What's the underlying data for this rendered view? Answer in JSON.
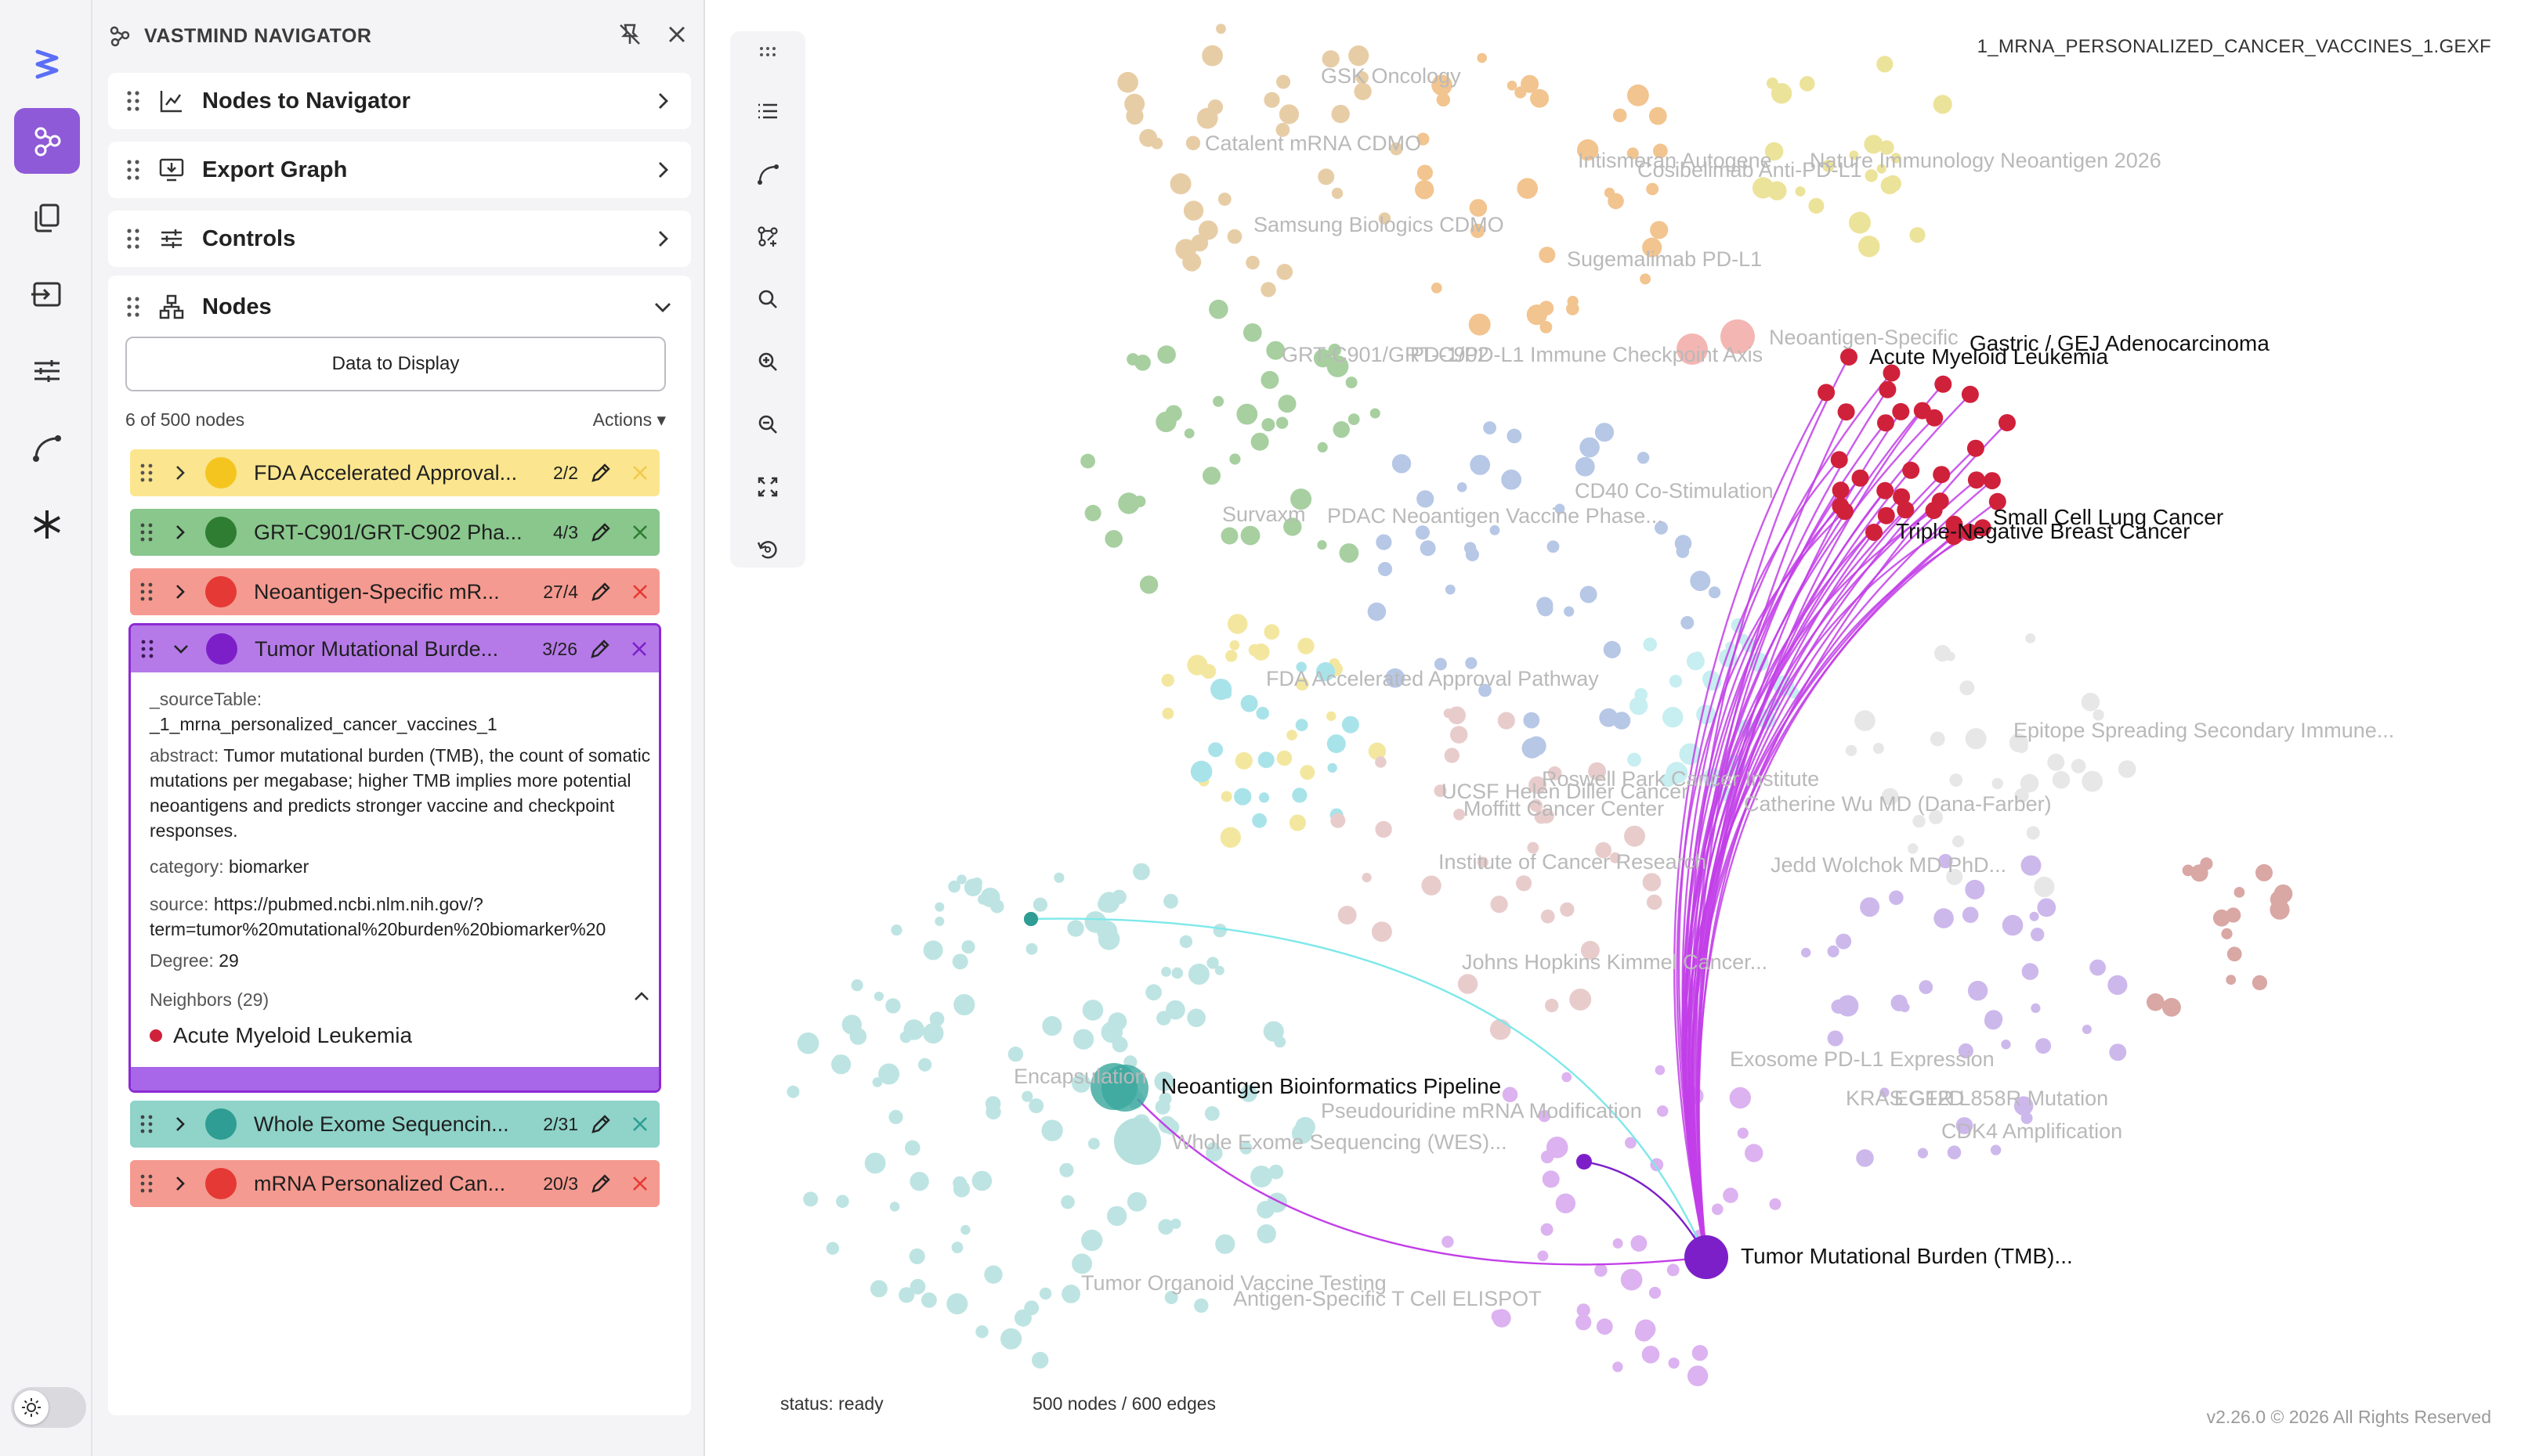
{
  "panel": {
    "title": "VASTMIND NAVIGATOR",
    "sections": {
      "nodes_to_navigator": "Nodes to Navigator",
      "export_graph": "Export Graph",
      "controls": "Controls",
      "nodes": "Nodes"
    },
    "data_button": "Data to Display",
    "node_count": "6 of 500 nodes",
    "actions_label": "Actions ▾",
    "groups": [
      {
        "label": "FDA Accelerated Approval...",
        "count": "2/2",
        "color": "#f5c51f",
        "bg": "#fbe58e"
      },
      {
        "label": "GRT-C901/GRT-C902 Pha...",
        "count": "4/3",
        "color": "#2e7d32",
        "bg": "#89c78c"
      },
      {
        "label": "Neoantigen-Specific mR...",
        "count": "27/4",
        "color": "#e53935",
        "bg": "#f59a90"
      },
      {
        "label": "Tumor Mutational Burde...",
        "count": "3/26",
        "color": "#7d1fc9",
        "bg": "#b57ae8"
      },
      {
        "label": "Whole Exome Sequencin...",
        "count": "2/31",
        "color": "#2f9d94",
        "bg": "#8fd3c9"
      },
      {
        "label": "mRNA Personalized Can...",
        "count": "20/3",
        "color": "#e53935",
        "bg": "#f59a90"
      }
    ],
    "details": {
      "source_table_key": "_sourceTable:",
      "source_table_value": "_1_mrna_personalized_cancer_vaccines_1",
      "abstract_key": "abstract:",
      "abstract_value": "Tumor mutational burden (TMB), the count of somatic mutations per megabase; higher TMB implies more potential neoantigens and predicts stronger vaccine and checkpoint responses.",
      "category_key": "category:",
      "category_value": "biomarker",
      "source_key": "source:",
      "source_value": "https://pubmed.ncbi.nlm.nih.gov/?",
      "source_value2": "term=tumor%20mutational%20burden%20biomarker%20",
      "degree_key": "Degree:",
      "degree_value": "29",
      "neighbors_label": "Neighbors (29)",
      "neighbor_item": "Acute Myeloid Leukemia"
    }
  },
  "canvas": {
    "file_name": "1_MRNA_PERSONALIZED_CANCER_VACCINES_1.GEXF",
    "status": "status: ready",
    "stats": "500 nodes / 600 edges",
    "version": "v2.26.0 © 2026 All Rights Reserved",
    "faded_labels": [
      "GSK Oncology",
      "Catalent mRNA CDMO",
      "Samsung Biologics CDMO",
      "Intismeran Autogene",
      "Cosibelimab Anti-PD-L1",
      "Nature Immunology Neoantigen 2026",
      "Sugemalimab PD-L1",
      "GRT-C901/GRT-C902",
      "PD-1/PD-L1 Immune Checkpoint Axis",
      "Neoantigen-Specific",
      "Survaxm",
      "PDAC Neoantigen Vaccine Phase...",
      "CD40 Co-Stimulation",
      "FDA Accelerated Approval Pathway",
      "Epitope Spreading Secondary Immune...",
      "UCSF Helen Diller Cancer",
      "Roswell Park Cancer Institute",
      "Moffitt Cancer Center",
      "Catherine Wu MD (Dana-Farber)",
      "Institute of Cancer Research",
      "Jedd Wolchok MD PhD...",
      "Johns Hopkins Kimmel Cancer...",
      "Encapsulation",
      "Pseudouridine mRNA Modification",
      "Whole Exome Sequencing (WES)...",
      "Exosome PD-L1 Expression",
      "KRAS G12D",
      "EGFR L858R Mutation",
      "CDK4 Amplification",
      "Tumor Organoid Vaccine Testing",
      "Antigen-Specific T Cell ELISPOT"
    ],
    "labels": {
      "gastric": "Gastric / GEJ Adenocarcinoma",
      "aml": "Acute Myeloid Leukemia",
      "sclc": "Small Cell Lung Cancer",
      "tnbc": "Triple-Negative Breast Cancer",
      "nbp": "Neoantigen Bioinformatics Pipeline",
      "tmb": "Tumor Mutational Burden (TMB)..."
    },
    "colors": {
      "accent": "#8e5ad8",
      "edge_magenta": "#c23ee8",
      "edge_cyan": "#7ee8ea",
      "focus_node": "#7d1fc9",
      "neighbor_node": "#d0213b"
    }
  }
}
